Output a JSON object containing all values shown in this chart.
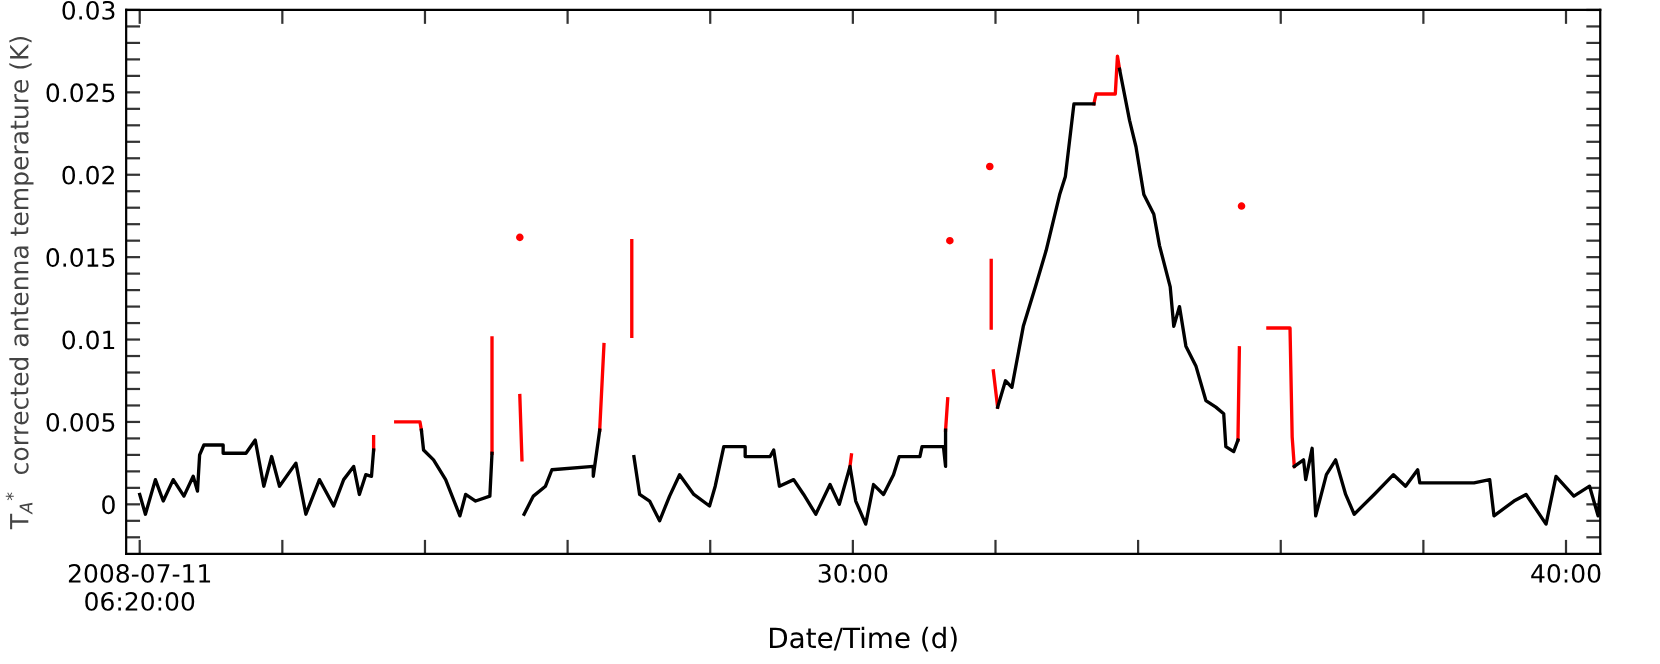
{
  "chart_data": {
    "type": "line",
    "xlabel": "Date/Time (d)",
    "ylabel": "T$_{A}$$^{*}$  corrected antenna temperature (K)",
    "xlim": [
      19.81,
      40.48
    ],
    "ylim": [
      -0.003,
      0.03
    ],
    "xticks": [
      {
        "value": 20,
        "label": "2008-07-11\n06:20:00"
      },
      {
        "value": 22,
        "label": null
      },
      {
        "value": 24,
        "label": null
      },
      {
        "value": 26,
        "label": null
      },
      {
        "value": 28,
        "label": null
      },
      {
        "value": 30,
        "label": "30:00"
      },
      {
        "value": 32,
        "label": null
      },
      {
        "value": 34,
        "label": null
      },
      {
        "value": 36,
        "label": null
      },
      {
        "value": 38,
        "label": null
      },
      {
        "value": 40,
        "label": "40:00"
      }
    ],
    "yticks": [
      {
        "value": -0.002,
        "label": null
      },
      {
        "value": -0.001,
        "label": null
      },
      0,
      {
        "value": 0.001,
        "label": null
      },
      {
        "value": 0.002,
        "label": null
      },
      {
        "value": 0.003,
        "label": null
      },
      {
        "value": 0.004,
        "label": null
      },
      0.005,
      {
        "value": 0.006,
        "label": null
      },
      {
        "value": 0.007,
        "label": null
      },
      {
        "value": 0.008,
        "label": null
      },
      {
        "value": 0.009,
        "label": null
      },
      0.01,
      {
        "value": 0.011,
        "label": null
      },
      {
        "value": 0.012,
        "label": null
      },
      {
        "value": 0.013,
        "label": null
      },
      {
        "value": 0.014,
        "label": null
      },
      0.015,
      {
        "value": 0.016,
        "label": null
      },
      {
        "value": 0.017,
        "label": null
      },
      {
        "value": 0.018,
        "label": null
      },
      {
        "value": 0.019,
        "label": null
      },
      0.02,
      {
        "value": 0.021,
        "label": null
      },
      {
        "value": 0.022,
        "label": null
      },
      {
        "value": 0.023,
        "label": null
      },
      {
        "value": 0.024,
        "label": null
      },
      0.025,
      {
        "value": 0.026,
        "label": null
      },
      {
        "value": 0.027,
        "label": null
      },
      {
        "value": 0.028,
        "label": null
      },
      {
        "value": 0.029,
        "label": null
      },
      0.03
    ],
    "grid": false,
    "marker": "none",
    "line_style": "solid",
    "series": [
      {
        "color": "#ff0000",
        "x": [
          23.28,
          23.28,
          23.4,
          23.59,
          23.93,
          23.95,
          24.6,
          24.94,
          24.94,
          25.14,
          25.33,
          25.36,
          25.8,
          26.45,
          26.51,
          26.7,
          26.9,
          26.9,
          26.94,
          29.96,
          29.98,
          30.6,
          31.3,
          31.33,
          31.68,
          31.94,
          31.94,
          31.96,
          31.97,
          32.03,
          32.4,
          33.38,
          33.41,
          33.68,
          33.71,
          33.74,
          34.2,
          35.4,
          35.42,
          35.7,
          35.82,
          36.13,
          36.16,
          36.19
        ],
        "values": [
          0.0033,
          0.0041,
          null,
          0.005,
          0.005,
          0.0045,
          null,
          0.0031,
          0.0101,
          null,
          0.0066,
          0.0027,
          null,
          0.0045,
          0.0097,
          null,
          0.016,
          0.0102,
          null,
          0.0023,
          0.003,
          null,
          0.0045,
          0.0064,
          null,
          0.0148,
          0.0107,
          null,
          0.0081,
          0.0059,
          null,
          0.0243,
          0.0249,
          0.0249,
          0.0272,
          0.0264,
          null,
          0.0039,
          0.0095,
          null,
          0.0107,
          0.0107,
          0.0041,
          0.0023
        ]
      },
      {
        "type": "scatter",
        "marker": "circle",
        "color": "#ff0000",
        "x": [
          25.33,
          31.36,
          31.92,
          35.45
        ],
        "values": [
          0.0162,
          0.016,
          0.0205,
          0.0181
        ]
      },
      {
        "color": "#000000",
        "x": [
          20.0,
          20.08,
          20.22,
          20.33,
          20.47,
          20.62,
          20.75,
          20.81,
          20.84,
          20.9,
          21.17,
          21.17,
          21.49,
          21.62,
          21.74,
          21.85,
          21.96,
          22.19,
          22.33,
          22.52,
          22.72,
          22.86,
          23.0,
          23.08,
          23.17,
          23.25,
          23.28,
          23.58,
          23.95,
          23.98,
          24.12,
          24.29,
          24.49,
          24.57,
          24.71,
          24.91,
          24.94,
          25.14,
          25.39,
          25.52,
          25.69,
          25.78,
          26.36,
          26.36,
          26.45,
          26.7,
          26.93,
          27.01,
          27.15,
          27.29,
          27.43,
          27.57,
          27.77,
          27.99,
          28.07,
          28.19,
          28.49,
          28.49,
          28.84,
          28.89,
          28.97,
          29.17,
          29.31,
          29.48,
          29.68,
          29.81,
          29.96,
          30.04,
          30.18,
          30.29,
          30.43,
          30.57,
          30.65,
          30.94,
          30.97,
          31.27,
          31.3,
          31.3,
          31.68,
          32.03,
          32.14,
          32.23,
          32.39,
          32.56,
          32.71,
          32.9,
          32.98,
          33.1,
          33.38,
          33.54,
          33.74,
          33.88,
          33.97,
          34.08,
          34.22,
          34.3,
          34.45,
          34.5,
          34.58,
          34.67,
          34.81,
          34.95,
          35.09,
          35.2,
          35.23,
          35.34,
          35.4,
          36.0,
          36.19,
          36.32,
          36.35,
          36.44,
          36.49,
          36.64,
          36.77,
          36.91,
          37.03,
          37.31,
          37.58,
          37.75,
          37.92,
          37.95,
          38.71,
          38.93,
          38.99,
          39.27,
          39.44,
          39.72,
          39.86,
          40.11,
          40.33,
          40.45,
          40.48
        ],
        "values": [
          0.0006,
          -0.0006,
          0.0015,
          0.0002,
          0.0015,
          0.0005,
          0.0017,
          0.0008,
          0.003,
          0.0036,
          0.0036,
          0.0031,
          0.0031,
          0.0039,
          0.0011,
          0.0029,
          0.0011,
          0.0025,
          -0.0006,
          0.0015,
          -0.0001,
          0.0015,
          0.0023,
          0.0006,
          0.0018,
          0.0017,
          0.0033,
          null,
          0.0045,
          0.0033,
          0.0027,
          0.0015,
          -0.0007,
          0.0006,
          0.0002,
          0.0005,
          0.0031,
          null,
          -0.0006,
          0.0005,
          0.0011,
          0.0021,
          0.0023,
          0.0017,
          0.0045,
          null,
          0.0029,
          0.0006,
          0.0002,
          -0.001,
          0.0005,
          0.0018,
          0.0006,
          -0.0001,
          0.0011,
          0.0035,
          0.0035,
          0.0029,
          0.0029,
          0.0033,
          0.0011,
          0.0015,
          0.0006,
          -0.0006,
          0.0012,
          0,
          0.0023,
          0.0002,
          -0.0012,
          0.0012,
          0.0006,
          0.0018,
          0.0029,
          0.0029,
          0.0035,
          0.0035,
          0.0023,
          0.0045,
          null,
          0.0059,
          0.0075,
          0.0071,
          0.0108,
          0.0132,
          0.0154,
          0.0188,
          0.0199,
          0.0243,
          0.0243,
          null,
          0.0264,
          0.0233,
          0.0217,
          0.0188,
          0.0176,
          0.0157,
          0.0132,
          0.0108,
          0.012,
          0.0096,
          0.0084,
          0.0063,
          0.0059,
          0.0055,
          0.0035,
          0.0032,
          0.0039,
          null,
          0.0023,
          0.0027,
          0.0015,
          0.0034,
          -0.0007,
          0.0018,
          0.0027,
          0.0006,
          -0.0006,
          0.0006,
          0.0018,
          0.0011,
          0.0021,
          0.0013,
          0.0013,
          0.0015,
          -0.0007,
          0.0002,
          0.0006,
          -0.0012,
          0.0017,
          0.0005,
          0.0011,
          -0.0007,
          0.0008
        ]
      }
    ]
  }
}
